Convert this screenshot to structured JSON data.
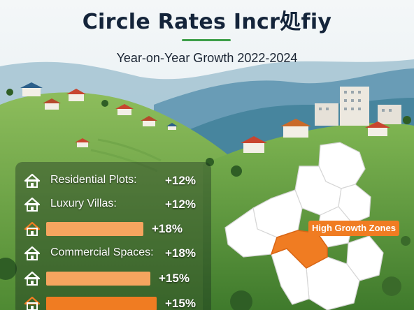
{
  "header": {
    "title": "Circle Rates Incr処fiy",
    "subtitle": "Year-on-Year Growth 2022-2024"
  },
  "rates": [
    {
      "label": "Residential Plots:",
      "value": "+12%",
      "icon": "house-icon",
      "bar": false
    },
    {
      "label": "Luxury Villas:",
      "value": "+12%",
      "icon": "house-icon",
      "bar": false
    },
    {
      "label": "",
      "value": "+18%",
      "icon": "house-icon",
      "bar": true,
      "bar_fill": 0.58
    },
    {
      "label": "Commercial Spaces:",
      "value": "+18%",
      "icon": "house-icon",
      "bar": false
    },
    {
      "label": "",
      "value": "+15%",
      "icon": "house-icon",
      "bar": true,
      "bar_fill": 0.62
    },
    {
      "label": "",
      "value": "+15%",
      "icon": "house-icon",
      "bar": true,
      "bar_fill": 0.66
    }
  ],
  "map": {
    "zones_label": "High Growth Zones",
    "highlight_color": "#f07c22"
  },
  "colors": {
    "accent": "#f07c22",
    "bar_light": "#f6a55f",
    "hill_green": "#5f9a3a",
    "title": "#14243a"
  }
}
